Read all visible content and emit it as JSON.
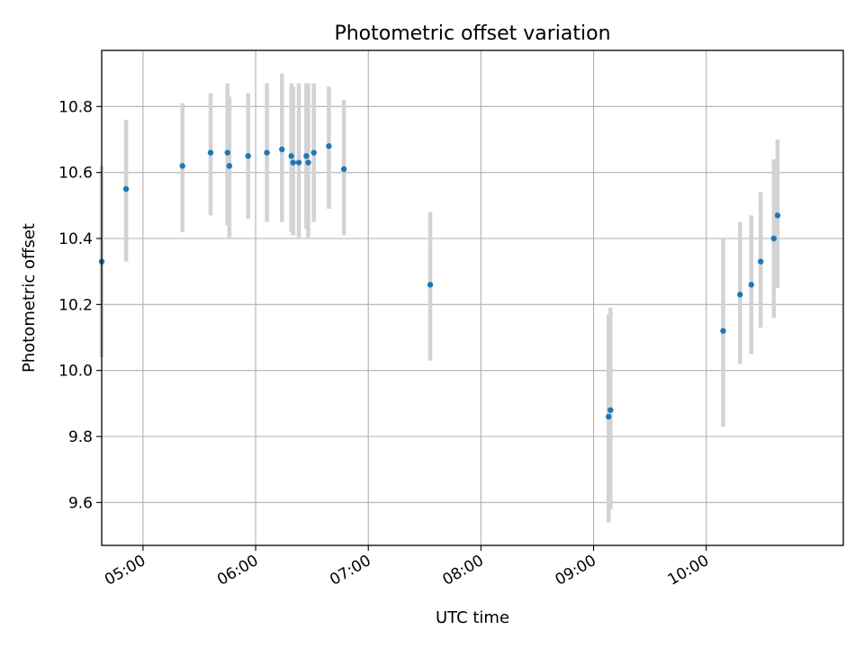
{
  "chart_data": {
    "type": "scatter",
    "title": "Photometric offset variation",
    "xlabel": "UTC time",
    "ylabel": "Photometric offset",
    "x_ticks": [
      "05:00",
      "06:00",
      "07:00",
      "08:00",
      "09:00",
      "10:00"
    ],
    "y_ticks": [
      "9.6",
      "9.8",
      "10.0",
      "10.2",
      "10.4",
      "10.6",
      "10.8"
    ],
    "xlim": [
      "04:38",
      "11:13"
    ],
    "ylim": [
      9.47,
      10.97
    ],
    "grid": true,
    "colors": {
      "point": "#1f77b4",
      "errorbar": "#d3d3d3",
      "grid": "#b0b0b0"
    },
    "points": [
      {
        "x": "04:38",
        "y": 10.33,
        "yerr_low": 10.04,
        "yerr_high": 10.62
      },
      {
        "x": "04:51",
        "y": 10.55,
        "yerr_low": 10.33,
        "yerr_high": 10.76
      },
      {
        "x": "05:21",
        "y": 10.62,
        "yerr_low": 10.42,
        "yerr_high": 10.81
      },
      {
        "x": "05:36",
        "y": 10.66,
        "yerr_low": 10.47,
        "yerr_high": 10.84
      },
      {
        "x": "05:45",
        "y": 10.66,
        "yerr_low": 10.44,
        "yerr_high": 10.87
      },
      {
        "x": "05:46",
        "y": 10.62,
        "yerr_low": 10.4,
        "yerr_high": 10.83
      },
      {
        "x": "05:56",
        "y": 10.65,
        "yerr_low": 10.46,
        "yerr_high": 10.84
      },
      {
        "x": "06:06",
        "y": 10.66,
        "yerr_low": 10.45,
        "yerr_high": 10.87
      },
      {
        "x": "06:14",
        "y": 10.67,
        "yerr_low": 10.45,
        "yerr_high": 10.9
      },
      {
        "x": "06:19",
        "y": 10.65,
        "yerr_low": 10.42,
        "yerr_high": 10.87
      },
      {
        "x": "06:20",
        "y": 10.63,
        "yerr_low": 10.41,
        "yerr_high": 10.86
      },
      {
        "x": "06:23",
        "y": 10.63,
        "yerr_low": 10.4,
        "yerr_high": 10.87
      },
      {
        "x": "06:27",
        "y": 10.65,
        "yerr_low": 10.43,
        "yerr_high": 10.87
      },
      {
        "x": "06:28",
        "y": 10.63,
        "yerr_low": 10.4,
        "yerr_high": 10.87
      },
      {
        "x": "06:31",
        "y": 10.66,
        "yerr_low": 10.45,
        "yerr_high": 10.87
      },
      {
        "x": "06:39",
        "y": 10.68,
        "yerr_low": 10.49,
        "yerr_high": 10.86
      },
      {
        "x": "06:47",
        "y": 10.61,
        "yerr_low": 10.41,
        "yerr_high": 10.82
      },
      {
        "x": "07:33",
        "y": 10.26,
        "yerr_low": 10.03,
        "yerr_high": 10.48
      },
      {
        "x": "09:08",
        "y": 9.86,
        "yerr_low": 9.54,
        "yerr_high": 10.17
      },
      {
        "x": "09:09",
        "y": 9.88,
        "yerr_low": 9.58,
        "yerr_high": 10.19
      },
      {
        "x": "10:09",
        "y": 10.12,
        "yerr_low": 9.83,
        "yerr_high": 10.4
      },
      {
        "x": "10:18",
        "y": 10.23,
        "yerr_low": 10.02,
        "yerr_high": 10.45
      },
      {
        "x": "10:24",
        "y": 10.26,
        "yerr_low": 10.05,
        "yerr_high": 10.47
      },
      {
        "x": "10:29",
        "y": 10.33,
        "yerr_low": 10.13,
        "yerr_high": 10.54
      },
      {
        "x": "10:36",
        "y": 10.4,
        "yerr_low": 10.16,
        "yerr_high": 10.64
      },
      {
        "x": "10:38",
        "y": 10.47,
        "yerr_low": 10.25,
        "yerr_high": 10.7
      }
    ]
  }
}
